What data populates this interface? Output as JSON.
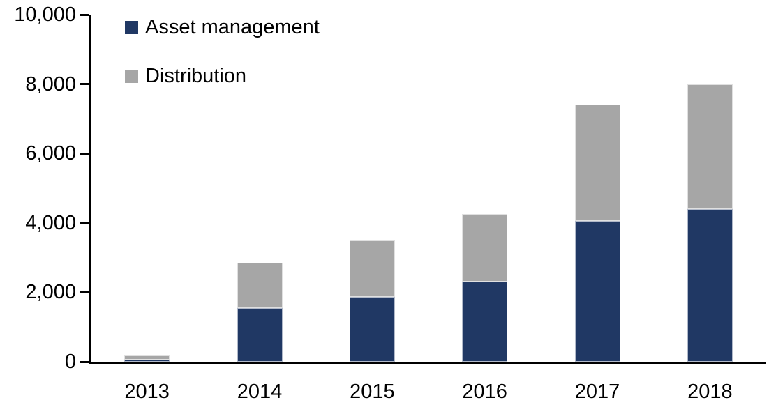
{
  "chart_data": {
    "type": "bar",
    "stacked": true,
    "title": "",
    "xlabel": "",
    "ylabel": "",
    "categories": [
      "2013",
      "2014",
      "2015",
      "2016",
      "2017",
      "2018"
    ],
    "series": [
      {
        "name": "Asset management",
        "color": "#203864",
        "values": [
          70,
          1550,
          1870,
          2300,
          4050,
          4400
        ]
      },
      {
        "name": "Distribution",
        "color": "#A6A6A6",
        "values": [
          120,
          1300,
          1630,
          1950,
          3350,
          3600
        ]
      }
    ],
    "stack_totals": [
      190,
      2850,
      3500,
      4250,
      7400,
      8000
    ],
    "ylim": [
      0,
      10000
    ],
    "ytick_step": 2000,
    "ytick_labels": [
      "0",
      "2,000",
      "4,000",
      "6,000",
      "8,000",
      "10,000"
    ],
    "grid": false,
    "legend_position": "top-left-inside"
  },
  "colors": {
    "axis": "#000000",
    "text": "#000000",
    "background": "#FFFFFF",
    "asset_management": "#203864",
    "distribution": "#A6A6A6"
  }
}
